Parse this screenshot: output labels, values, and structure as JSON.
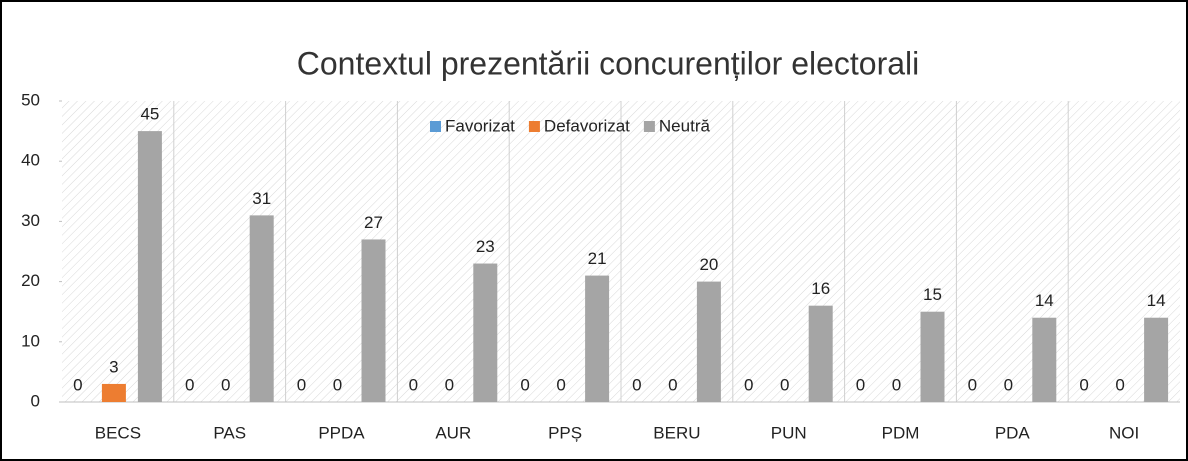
{
  "chart_data": {
    "type": "bar",
    "title": "Contextul prezentării concurenților electorali",
    "categories": [
      "BECS",
      "PAS",
      "PPDA",
      "AUR",
      "PPȘ",
      "BERU",
      "PUN",
      "PDM",
      "PDA",
      "NOI"
    ],
    "series": [
      {
        "name": "Favorizat",
        "color": "#5b9bd5",
        "values": [
          0,
          0,
          0,
          0,
          0,
          0,
          0,
          0,
          0,
          0
        ]
      },
      {
        "name": "Defavorizat",
        "color": "#ed7d31",
        "values": [
          3,
          0,
          0,
          0,
          0,
          0,
          0,
          0,
          0,
          0
        ]
      },
      {
        "name": "Neutră",
        "color": "#a5a5a5",
        "values": [
          45,
          31,
          27,
          23,
          21,
          20,
          16,
          15,
          14,
          14
        ]
      }
    ],
    "ylim": [
      0,
      50
    ],
    "yticks": [
      0,
      10,
      20,
      30,
      40,
      50
    ],
    "legend": "top"
  }
}
